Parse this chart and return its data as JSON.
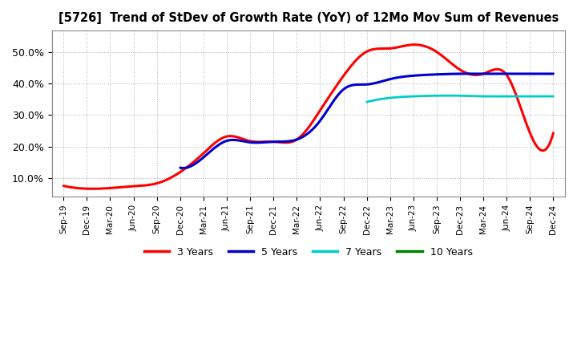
{
  "title": "[5726]  Trend of StDev of Growth Rate (YoY) of 12Mo Mov Sum of Revenues",
  "ylabel": "",
  "ylim": [
    0.04,
    0.57
  ],
  "yticks": [
    0.1,
    0.2,
    0.3,
    0.4,
    0.5
  ],
  "ytick_labels": [
    "10.0%",
    "20.0%",
    "30.0%",
    "40.0%",
    "50.0%"
  ],
  "background_color": "#ffffff",
  "plot_bg_color": "#ffffff",
  "grid_color": "#aaaaaa",
  "x_labels": [
    "Sep-19",
    "Dec-19",
    "Mar-20",
    "Jun-20",
    "Sep-20",
    "Dec-20",
    "Mar-21",
    "Jun-21",
    "Sep-21",
    "Dec-21",
    "Mar-22",
    "Jun-22",
    "Sep-22",
    "Dec-22",
    "Mar-23",
    "Jun-23",
    "Sep-23",
    "Dec-23",
    "Mar-24",
    "Jun-24",
    "Sep-24",
    "Dec-24"
  ],
  "series": {
    "3 Years": {
      "color": "#ff0000",
      "linewidth": 2.2,
      "data_x": [
        0,
        1,
        2,
        3,
        4,
        5,
        6,
        7,
        8,
        9,
        10,
        11,
        12,
        13,
        14,
        15,
        16,
        17,
        18,
        19,
        20,
        21
      ],
      "data_y": [
        0.074,
        0.065,
        0.067,
        0.073,
        0.082,
        0.118,
        0.178,
        0.232,
        0.217,
        0.215,
        0.222,
        0.315,
        0.425,
        0.503,
        0.513,
        0.525,
        0.502,
        0.445,
        0.432,
        0.428,
        0.243,
        0.243
      ]
    },
    "5 Years": {
      "color": "#0000cc",
      "linewidth": 2.2,
      "data_x": [
        5,
        6,
        7,
        8,
        9,
        10,
        11,
        12,
        13,
        14,
        15,
        16,
        17,
        18,
        19,
        20,
        21
      ],
      "data_y": [
        0.132,
        0.165,
        0.218,
        0.213,
        0.215,
        0.222,
        0.282,
        0.382,
        0.398,
        0.415,
        0.426,
        0.43,
        0.432,
        0.432,
        0.432,
        0.432,
        0.432
      ]
    },
    "7 Years": {
      "color": "#00cccc",
      "linewidth": 2.0,
      "data_x": [
        13,
        14,
        15,
        16,
        17,
        18,
        19,
        20,
        21
      ],
      "data_y": [
        0.342,
        0.355,
        0.36,
        0.362,
        0.362,
        0.36,
        0.36,
        0.36,
        0.36
      ]
    },
    "10 Years": {
      "color": "#008000",
      "linewidth": 2.0,
      "data_x": [],
      "data_y": []
    }
  },
  "legend_labels": [
    "3 Years",
    "5 Years",
    "7 Years",
    "10 Years"
  ],
  "legend_colors": [
    "#ff0000",
    "#0000cc",
    "#00cccc",
    "#008000"
  ]
}
